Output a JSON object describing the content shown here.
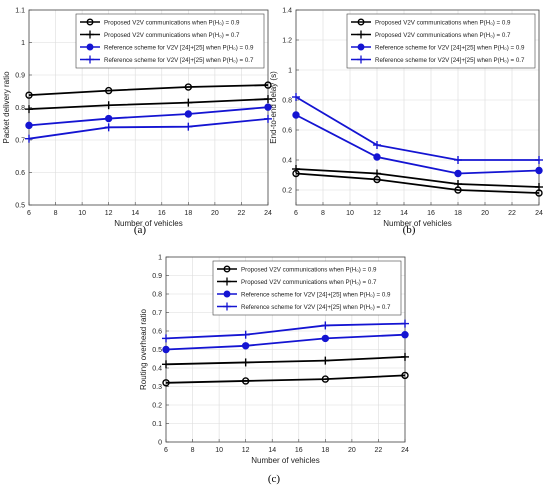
{
  "styles": {
    "colors": {
      "black": "#000000",
      "blue": "#1414d2",
      "grid": "#dcdcdc",
      "frame": "#444444"
    }
  },
  "chart_data": [
    {
      "panel": "a",
      "caption": "(a)",
      "type": "line",
      "xlabel": "Number of vehicles",
      "ylabel": "Packet delivery ratio",
      "x": [
        6,
        12,
        18,
        24
      ],
      "xlim": [
        6,
        24
      ],
      "ylim": [
        0.5,
        1.1
      ],
      "xticks": [
        "6",
        "8",
        "10",
        "12",
        "14",
        "16",
        "18",
        "20",
        "22",
        "24"
      ],
      "yticks": [
        "0.5",
        "0.6",
        "0.7",
        "0.8",
        "0.9",
        "1",
        "1.1"
      ],
      "grid": true,
      "legend_position": "top-right",
      "series": [
        {
          "name": "Proposed V2V communications when P(H₀) = 0.9",
          "color": "black",
          "marker": "circle",
          "values": [
            0.838,
            0.852,
            0.863,
            0.869
          ]
        },
        {
          "name": "Proposed V2V communications when P(H₀) = 0.7",
          "color": "black",
          "marker": "plus",
          "values": [
            0.795,
            0.807,
            0.815,
            0.826
          ]
        },
        {
          "name": "Reference scheme for V2V [24]+[25] when P(H₀) = 0.9",
          "color": "blue",
          "marker": "circle",
          "values": [
            0.745,
            0.766,
            0.78,
            0.801
          ]
        },
        {
          "name": "Reference scheme for V2V [24]+[25] when P(H₀) = 0.7",
          "color": "blue",
          "marker": "plus",
          "values": [
            0.704,
            0.739,
            0.741,
            0.765
          ]
        }
      ]
    },
    {
      "panel": "b",
      "caption": "(b)",
      "type": "line",
      "xlabel": "Number of vehicles",
      "ylabel": "End-to-end delay (s)",
      "x": [
        6,
        12,
        18,
        24
      ],
      "xlim": [
        6,
        24
      ],
      "ylim": [
        0.1,
        1.4
      ],
      "xticks": [
        "6",
        "8",
        "10",
        "12",
        "14",
        "16",
        "18",
        "20",
        "22",
        "24"
      ],
      "yticks": [
        "0.2",
        "0.4",
        "0.6",
        "0.8",
        "1",
        "1.2",
        "1.4"
      ],
      "grid": true,
      "legend_position": "top-right",
      "series": [
        {
          "name": "Proposed V2V communications when P(H₀) = 0.9",
          "color": "black",
          "marker": "circle",
          "values": [
            0.31,
            0.27,
            0.2,
            0.18
          ]
        },
        {
          "name": "Proposed V2V communications when P(H₀) = 0.7",
          "color": "black",
          "marker": "plus",
          "values": [
            0.34,
            0.31,
            0.24,
            0.22
          ]
        },
        {
          "name": "Reference scheme for V2V [24]+[25] when P(H₀) = 0.9",
          "color": "blue",
          "marker": "circle",
          "values": [
            0.7,
            0.42,
            0.31,
            0.33
          ]
        },
        {
          "name": "Reference scheme for V2V [24]+[25] when P(H₀) = 0.7",
          "color": "blue",
          "marker": "plus",
          "values": [
            0.82,
            0.5,
            0.4,
            0.4
          ]
        }
      ]
    },
    {
      "panel": "c",
      "caption": "(c)",
      "type": "line",
      "xlabel": "Number of vehicles",
      "ylabel": "Routing overhead ratio",
      "x": [
        6,
        12,
        18,
        24
      ],
      "xlim": [
        6,
        24
      ],
      "ylim": [
        0,
        1
      ],
      "xticks": [
        "6",
        "8",
        "10",
        "12",
        "14",
        "16",
        "18",
        "20",
        "22",
        "24"
      ],
      "yticks": [
        "0",
        "0.1",
        "0.2",
        "0.3",
        "0.4",
        "0.5",
        "0.6",
        "0.7",
        "0.8",
        "0.9",
        "1"
      ],
      "grid": true,
      "legend_position": "top-right",
      "series": [
        {
          "name": "Proposed V2V communications when P(H₀) = 0.9",
          "color": "black",
          "marker": "circle",
          "values": [
            0.32,
            0.33,
            0.34,
            0.36
          ]
        },
        {
          "name": "Proposed V2V communications when P(H₀) = 0.7",
          "color": "black",
          "marker": "plus",
          "values": [
            0.42,
            0.43,
            0.44,
            0.46
          ]
        },
        {
          "name": "Reference scheme for V2V [24]+[25] when P(H₀) = 0.9",
          "color": "blue",
          "marker": "circle",
          "values": [
            0.5,
            0.52,
            0.56,
            0.58
          ]
        },
        {
          "name": "Reference scheme for V2V [24]+[25] when P(H₀) = 0.7",
          "color": "blue",
          "marker": "plus",
          "values": [
            0.56,
            0.58,
            0.63,
            0.64
          ]
        }
      ]
    }
  ]
}
